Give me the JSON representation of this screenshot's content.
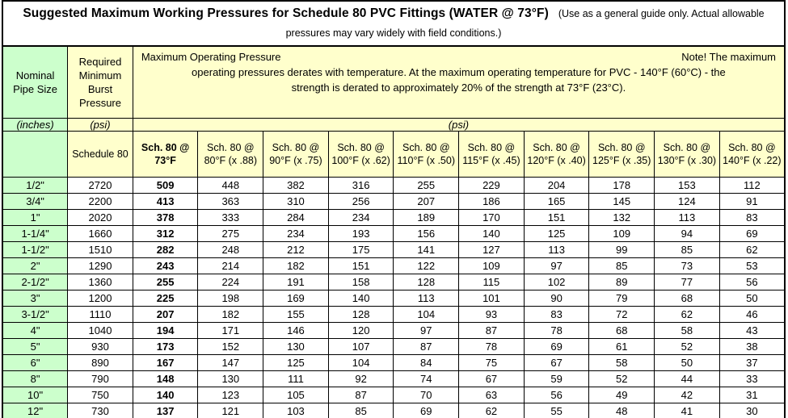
{
  "page": {
    "title_main": "Suggested Maximum Working Pressures for Schedule 80 PVC Fittings (WATER @ 73°F)",
    "title_note": "(Use as a general guide only. Actual allowable pressures may vary widely with field conditions.)"
  },
  "colors": {
    "pipe_size_green": "#ccffcc",
    "header_yellow": "#ffffcc",
    "border_black": "#000000",
    "background_white": "#ffffff"
  },
  "table": {
    "corner": {
      "nominal_pipe_size": "Nominal Pipe Size",
      "burst_pressure": "Required Minimum Burst Pressure",
      "units_inches": "(inches)",
      "units_psi": "(psi)",
      "units_psi_span": "(psi)"
    },
    "operating_note": {
      "line1_left": "Maximum Operating Pressure",
      "line1_right": "Note! The maximum",
      "line2": "operating pressures derates with temperature. At the maximum operating temperature for PVC - 140°F (60°C) - the",
      "line3": "strength is derated to approximately 20% of the strength at 73°F (23°C)."
    },
    "columns": [
      "Schedule 80",
      "Sch. 80 @ 73°F",
      "Sch. 80 @ 80°F (x .88)",
      "Sch. 80 @ 90°F (x .75)",
      "Sch. 80 @ 100°F (x .62)",
      "Sch. 80 @ 110°F (x .50)",
      "Sch. 80 @ 115°F (x .45)",
      "Sch. 80 @ 120°F (x .40)",
      "Sch. 80 @ 125°F (x .35)",
      "Sch. 80 @ 130°F (x .30)",
      "Sch. 80 @ 140°F (x .22)"
    ],
    "rows": [
      {
        "size": "1/2\"",
        "values": [
          "2720",
          "509",
          "448",
          "382",
          "316",
          "255",
          "229",
          "204",
          "178",
          "153",
          "112"
        ]
      },
      {
        "size": "3/4\"",
        "values": [
          "2200",
          "413",
          "363",
          "310",
          "256",
          "207",
          "186",
          "165",
          "145",
          "124",
          "91"
        ]
      },
      {
        "size": "1\"",
        "values": [
          "2020",
          "378",
          "333",
          "284",
          "234",
          "189",
          "170",
          "151",
          "132",
          "113",
          "83"
        ]
      },
      {
        "size": "1-1/4\"",
        "values": [
          "1660",
          "312",
          "275",
          "234",
          "193",
          "156",
          "140",
          "125",
          "109",
          "94",
          "69"
        ]
      },
      {
        "size": "1-1/2\"",
        "values": [
          "1510",
          "282",
          "248",
          "212",
          "175",
          "141",
          "127",
          "113",
          "99",
          "85",
          "62"
        ]
      },
      {
        "size": "2\"",
        "values": [
          "1290",
          "243",
          "214",
          "182",
          "151",
          "122",
          "109",
          "97",
          "85",
          "73",
          "53"
        ]
      },
      {
        "size": "2-1/2\"",
        "values": [
          "1360",
          "255",
          "224",
          "191",
          "158",
          "128",
          "115",
          "102",
          "89",
          "77",
          "56"
        ]
      },
      {
        "size": "3\"",
        "values": [
          "1200",
          "225",
          "198",
          "169",
          "140",
          "113",
          "101",
          "90",
          "79",
          "68",
          "50"
        ]
      },
      {
        "size": "3-1/2\"",
        "values": [
          "1110",
          "207",
          "182",
          "155",
          "128",
          "104",
          "93",
          "83",
          "72",
          "62",
          "46"
        ]
      },
      {
        "size": "4\"",
        "values": [
          "1040",
          "194",
          "171",
          "146",
          "120",
          "97",
          "87",
          "78",
          "68",
          "58",
          "43"
        ]
      },
      {
        "size": "5\"",
        "values": [
          "930",
          "173",
          "152",
          "130",
          "107",
          "87",
          "78",
          "69",
          "61",
          "52",
          "38"
        ]
      },
      {
        "size": "6\"",
        "values": [
          "890",
          "167",
          "147",
          "125",
          "104",
          "84",
          "75",
          "67",
          "58",
          "50",
          "37"
        ]
      },
      {
        "size": "8\"",
        "values": [
          "790",
          "148",
          "130",
          "111",
          "92",
          "74",
          "67",
          "59",
          "52",
          "44",
          "33"
        ]
      },
      {
        "size": "10\"",
        "values": [
          "750",
          "140",
          "123",
          "105",
          "87",
          "70",
          "63",
          "56",
          "49",
          "42",
          "31"
        ]
      },
      {
        "size": "12\"",
        "values": [
          "730",
          "137",
          "121",
          "103",
          "85",
          "69",
          "62",
          "55",
          "48",
          "41",
          "30"
        ]
      }
    ]
  }
}
